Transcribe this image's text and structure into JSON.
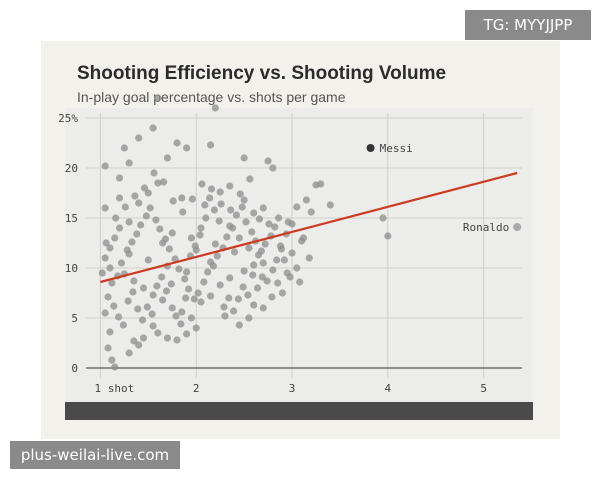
{
  "watermarks": {
    "top_right": "TG: MYYJJPP",
    "bottom_left": "plus-weilai-live.com"
  },
  "chart_data": {
    "type": "scatter",
    "title": "Shooting Efficiency vs. Shooting Volume",
    "subtitle": "In-play goal percentage vs. shots per game",
    "xlabel": "",
    "ylabel": "",
    "xlim": [
      0.85,
      5.4
    ],
    "ylim": [
      -1,
      26
    ],
    "x_ticks": [
      {
        "value": 1,
        "label": "1 shot"
      },
      {
        "value": 2,
        "label": "2"
      },
      {
        "value": 3,
        "label": "3"
      },
      {
        "value": 4,
        "label": "4"
      },
      {
        "value": 5,
        "label": "5"
      }
    ],
    "y_ticks": [
      {
        "value": 0,
        "label": "0"
      },
      {
        "value": 5,
        "label": "5"
      },
      {
        "value": 10,
        "label": "10"
      },
      {
        "value": 15,
        "label": "15"
      },
      {
        "value": 20,
        "label": "20"
      },
      {
        "value": 25,
        "label": "25%"
      }
    ],
    "grid": true,
    "trend_line": {
      "x": [
        1.0,
        5.35
      ],
      "y": [
        8.6,
        19.5
      ],
      "color": "#cc3a1f"
    },
    "highlights": [
      {
        "label": "Messi",
        "x": 3.82,
        "y": 22.0,
        "color": "#333333"
      },
      {
        "label": "Ronaldo",
        "x": 5.35,
        "y": 14.1,
        "color": "#aaaaaa"
      }
    ],
    "point_color": "#8e8e8e",
    "points": [
      [
        1.6,
        27.0
      ],
      [
        1.55,
        24.0
      ],
      [
        2.2,
        26.0
      ],
      [
        1.4,
        23.0
      ],
      [
        1.8,
        22.5
      ],
      [
        1.9,
        22.0
      ],
      [
        2.15,
        22.3
      ],
      [
        1.25,
        22.0
      ],
      [
        1.2,
        19.0
      ],
      [
        1.05,
        20.2
      ],
      [
        1.3,
        20.5
      ],
      [
        1.7,
        21.0
      ],
      [
        2.5,
        21.0
      ],
      [
        2.75,
        20.7
      ],
      [
        2.8,
        20.0
      ],
      [
        3.25,
        18.3
      ],
      [
        3.3,
        18.4
      ],
      [
        3.4,
        16.3
      ],
      [
        3.15,
        16.8
      ],
      [
        3.2,
        15.6
      ],
      [
        3.05,
        16.1
      ],
      [
        3.95,
        15.0
      ],
      [
        4.0,
        13.2
      ],
      [
        3.0,
        14.4
      ],
      [
        3.1,
        12.7
      ],
      [
        3.0,
        11.5
      ],
      [
        2.95,
        9.5
      ],
      [
        3.05,
        10.0
      ],
      [
        2.85,
        8.5
      ],
      [
        2.9,
        7.5
      ],
      [
        2.7,
        6.0
      ],
      [
        2.6,
        6.3
      ],
      [
        2.55,
        5.0
      ],
      [
        2.45,
        4.3
      ],
      [
        2.3,
        5.2
      ],
      [
        1.05,
        5.5
      ],
      [
        1.1,
        3.6
      ],
      [
        1.08,
        2.0
      ],
      [
        1.12,
        0.8
      ],
      [
        1.15,
        0.1
      ],
      [
        1.3,
        1.5
      ],
      [
        1.35,
        2.7
      ],
      [
        1.4,
        2.3
      ],
      [
        1.45,
        3.0
      ],
      [
        1.55,
        4.2
      ],
      [
        1.6,
        3.5
      ],
      [
        1.7,
        3.0
      ],
      [
        1.8,
        2.8
      ],
      [
        1.9,
        3.4
      ],
      [
        2.0,
        4.0
      ],
      [
        1.65,
        12.5
      ],
      [
        1.75,
        13.5
      ],
      [
        2.05,
        14.0
      ],
      [
        2.1,
        15.0
      ],
      [
        2.35,
        14.2
      ],
      [
        2.45,
        13.0
      ],
      [
        2.55,
        12.0
      ],
      [
        2.65,
        11.3
      ],
      [
        2.7,
        10.5
      ],
      [
        2.8,
        9.8
      ],
      [
        1.3,
        14.6
      ],
      [
        1.2,
        14.0
      ],
      [
        1.15,
        13.0
      ],
      [
        1.1,
        12.0
      ],
      [
        1.05,
        11.0
      ],
      [
        1.1,
        10.0
      ],
      [
        1.25,
        9.4
      ],
      [
        1.35,
        8.7
      ],
      [
        1.45,
        8.0
      ],
      [
        1.55,
        7.3
      ],
      [
        1.65,
        6.8
      ],
      [
        1.75,
        6.0
      ],
      [
        1.85,
        5.6
      ],
      [
        1.95,
        5.0
      ],
      [
        2.05,
        6.6
      ],
      [
        2.15,
        7.2
      ],
      [
        2.25,
        8.3
      ],
      [
        2.35,
        9.0
      ],
      [
        2.5,
        9.7
      ],
      [
        2.6,
        10.3
      ],
      [
        1.5,
        17.5
      ],
      [
        1.6,
        18.5
      ],
      [
        1.85,
        17.0
      ],
      [
        2.25,
        17.6
      ],
      [
        2.35,
        18.2
      ],
      [
        2.5,
        16.8
      ],
      [
        2.6,
        15.5
      ],
      [
        2.7,
        16.0
      ],
      [
        1.4,
        16.5
      ],
      [
        1.2,
        17.0
      ],
      [
        1.05,
        16.0
      ],
      [
        1.3,
        11.4
      ],
      [
        1.5,
        10.8
      ],
      [
        1.7,
        10.2
      ],
      [
        1.9,
        9.6
      ],
      [
        2.0,
        11.8
      ],
      [
        2.2,
        12.4
      ],
      [
        2.4,
        11.6
      ],
      [
        2.15,
        10.6
      ],
      [
        1.95,
        13.0
      ],
      [
        1.12,
        8.5
      ],
      [
        1.18,
        9.2
      ],
      [
        1.22,
        10.5
      ],
      [
        1.28,
        11.8
      ],
      [
        1.33,
        12.6
      ],
      [
        1.38,
        13.4
      ],
      [
        1.42,
        14.3
      ],
      [
        1.48,
        15.2
      ],
      [
        1.52,
        16.0
      ],
      [
        1.58,
        14.8
      ],
      [
        1.62,
        13.9
      ],
      [
        1.68,
        12.9
      ],
      [
        1.72,
        11.9
      ],
      [
        1.78,
        10.9
      ],
      [
        1.82,
        9.9
      ],
      [
        1.88,
        8.9
      ],
      [
        1.92,
        7.9
      ],
      [
        1.98,
        6.9
      ],
      [
        2.02,
        7.5
      ],
      [
        2.08,
        8.6
      ],
      [
        2.12,
        9.6
      ],
      [
        2.18,
        10.2
      ],
      [
        2.22,
        11.2
      ],
      [
        2.28,
        12.0
      ],
      [
        2.32,
        13.1
      ],
      [
        2.38,
        14.0
      ],
      [
        2.42,
        15.3
      ],
      [
        2.48,
        16.1
      ],
      [
        2.52,
        14.6
      ],
      [
        2.58,
        13.6
      ],
      [
        2.62,
        12.7
      ],
      [
        2.68,
        11.7
      ],
      [
        2.72,
        12.4
      ],
      [
        2.78,
        13.2
      ],
      [
        2.82,
        14.1
      ],
      [
        2.88,
        12.2
      ],
      [
        2.92,
        10.8
      ],
      [
        2.98,
        9.1
      ],
      [
        1.08,
        7.1
      ],
      [
        1.14,
        6.2
      ],
      [
        1.19,
        5.1
      ],
      [
        1.24,
        4.3
      ],
      [
        1.29,
        6.7
      ],
      [
        1.34,
        7.6
      ],
      [
        1.39,
        5.9
      ],
      [
        1.44,
        4.8
      ],
      [
        1.49,
        6.1
      ],
      [
        1.54,
        5.4
      ],
      [
        1.59,
        8.2
      ],
      [
        1.64,
        9.1
      ],
      [
        1.69,
        7.7
      ],
      [
        1.74,
        8.4
      ],
      [
        1.79,
        5.2
      ],
      [
        1.84,
        4.4
      ],
      [
        1.89,
        7.0
      ],
      [
        1.94,
        11.2
      ],
      [
        1.99,
        12.2
      ],
      [
        2.04,
        13.3
      ],
      [
        2.09,
        16.3
      ],
      [
        2.14,
        17.0
      ],
      [
        2.19,
        15.8
      ],
      [
        2.24,
        14.7
      ],
      [
        2.29,
        6.1
      ],
      [
        2.34,
        7.0
      ],
      [
        2.39,
        5.7
      ],
      [
        2.44,
        6.9
      ],
      [
        2.49,
        8.1
      ],
      [
        2.54,
        7.3
      ],
      [
        2.59,
        9.3
      ],
      [
        2.64,
        8.0
      ],
      [
        2.69,
        9.1
      ],
      [
        2.74,
        8.7
      ],
      [
        2.79,
        7.1
      ],
      [
        2.84,
        10.8
      ],
      [
        2.89,
        11.9
      ],
      [
        2.94,
        13.4
      ],
      [
        1.02,
        9.5
      ],
      [
        1.06,
        12.5
      ],
      [
        1.16,
        15.0
      ],
      [
        1.26,
        16.1
      ],
      [
        1.36,
        17.2
      ],
      [
        1.46,
        18.0
      ],
      [
        1.56,
        19.5
      ],
      [
        1.66,
        18.6
      ],
      [
        1.76,
        16.7
      ],
      [
        1.86,
        15.6
      ],
      [
        1.96,
        16.9
      ],
      [
        2.06,
        18.4
      ],
      [
        2.16,
        17.9
      ],
      [
        2.26,
        16.4
      ],
      [
        2.36,
        15.8
      ],
      [
        2.46,
        17.4
      ],
      [
        2.56,
        18.9
      ],
      [
        2.66,
        14.9
      ],
      [
        2.76,
        14.4
      ],
      [
        2.86,
        15.0
      ],
      [
        2.96,
        14.6
      ],
      [
        3.12,
        13.0
      ],
      [
        3.18,
        11.0
      ],
      [
        3.08,
        8.6
      ]
    ]
  }
}
